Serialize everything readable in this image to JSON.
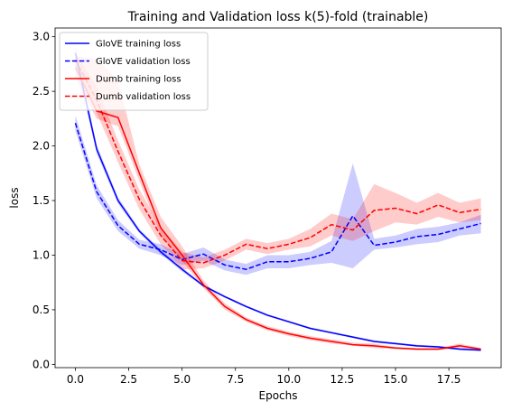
{
  "chart_data": {
    "type": "line",
    "title": "Training and Validation loss k(5)-fold (trainable)",
    "xlabel": "Epochs",
    "ylabel": "loss",
    "xlim": [
      -0.95,
      19.95
    ],
    "ylim": [
      -0.03,
      3.08
    ],
    "xticks": [
      0.0,
      2.5,
      5.0,
      7.5,
      10.0,
      12.5,
      15.0,
      17.5
    ],
    "xtick_labels": [
      "0.0",
      "2.5",
      "5.0",
      "7.5",
      "10.0",
      "12.5",
      "15.0",
      "17.5"
    ],
    "yticks": [
      0.0,
      0.5,
      1.0,
      1.5,
      2.0,
      2.5,
      3.0
    ],
    "ytick_labels": [
      "0.0",
      "0.5",
      "1.0",
      "1.5",
      "2.0",
      "2.5",
      "3.0"
    ],
    "grid": false,
    "legend_position": "top-left",
    "x": [
      0,
      1,
      2,
      3,
      4,
      5,
      6,
      7,
      8,
      9,
      10,
      11,
      12,
      13,
      14,
      15,
      16,
      17,
      18,
      19
    ],
    "series": [
      {
        "name": "GloVE training loss",
        "color": "#0000ff",
        "style": "solid",
        "values": [
          2.85,
          1.97,
          1.5,
          1.22,
          1.03,
          0.87,
          0.72,
          0.62,
          0.53,
          0.45,
          0.39,
          0.33,
          0.29,
          0.25,
          0.21,
          0.19,
          0.17,
          0.16,
          0.14,
          0.13
        ],
        "lower": [
          2.78,
          1.93,
          1.47,
          1.2,
          1.01,
          0.85,
          0.71,
          0.61,
          0.52,
          0.44,
          0.38,
          0.32,
          0.28,
          0.24,
          0.2,
          0.18,
          0.16,
          0.15,
          0.13,
          0.12
        ],
        "upper": [
          2.92,
          2.01,
          1.53,
          1.24,
          1.05,
          0.89,
          0.73,
          0.63,
          0.54,
          0.46,
          0.4,
          0.34,
          0.3,
          0.26,
          0.22,
          0.2,
          0.18,
          0.17,
          0.15,
          0.14
        ]
      },
      {
        "name": "GloVE validation loss",
        "color": "#0000ff",
        "style": "dashed",
        "values": [
          2.21,
          1.58,
          1.27,
          1.1,
          1.05,
          0.96,
          1.01,
          0.91,
          0.87,
          0.94,
          0.94,
          0.97,
          1.03,
          1.36,
          1.09,
          1.12,
          1.17,
          1.19,
          1.24,
          1.29
        ],
        "lower": [
          2.14,
          1.52,
          1.22,
          1.06,
          1.0,
          0.91,
          0.95,
          0.86,
          0.82,
          0.88,
          0.88,
          0.91,
          0.93,
          0.88,
          1.05,
          1.07,
          1.1,
          1.12,
          1.18,
          1.2
        ],
        "upper": [
          2.28,
          1.64,
          1.32,
          1.14,
          1.1,
          1.01,
          1.07,
          0.96,
          0.92,
          1.0,
          1.0,
          1.03,
          1.13,
          1.84,
          1.15,
          1.18,
          1.24,
          1.26,
          1.3,
          1.37
        ]
      },
      {
        "name": "Dumb training loss",
        "color": "#ff0000",
        "style": "solid",
        "values": [
          2.72,
          2.32,
          2.26,
          1.75,
          1.25,
          1.0,
          0.73,
          0.53,
          0.41,
          0.33,
          0.28,
          0.24,
          0.21,
          0.18,
          0.17,
          0.15,
          0.14,
          0.14,
          0.17,
          0.14
        ],
        "lower": [
          2.62,
          2.25,
          2.18,
          1.68,
          1.18,
          0.95,
          0.7,
          0.5,
          0.39,
          0.31,
          0.26,
          0.22,
          0.19,
          0.17,
          0.15,
          0.14,
          0.13,
          0.13,
          0.15,
          0.13
        ],
        "upper": [
          2.82,
          2.8,
          2.6,
          1.83,
          1.35,
          1.08,
          0.77,
          0.56,
          0.43,
          0.35,
          0.3,
          0.26,
          0.23,
          0.2,
          0.19,
          0.16,
          0.15,
          0.15,
          0.19,
          0.15
        ]
      },
      {
        "name": "Dumb validation loss",
        "color": "#ff0000",
        "style": "dashed",
        "values": [
          2.79,
          2.42,
          1.95,
          1.51,
          1.18,
          0.95,
          0.93,
          1.0,
          1.1,
          1.06,
          1.1,
          1.16,
          1.28,
          1.23,
          1.41,
          1.43,
          1.38,
          1.46,
          1.39,
          1.42
        ],
        "lower": [
          2.72,
          2.3,
          1.85,
          1.42,
          1.1,
          0.87,
          0.88,
          0.95,
          1.05,
          1.01,
          1.05,
          1.08,
          1.18,
          1.13,
          1.22,
          1.3,
          1.28,
          1.35,
          1.3,
          1.32
        ],
        "upper": [
          2.86,
          2.54,
          2.05,
          1.6,
          1.26,
          1.03,
          0.98,
          1.05,
          1.15,
          1.11,
          1.15,
          1.24,
          1.38,
          1.33,
          1.65,
          1.57,
          1.48,
          1.57,
          1.48,
          1.52
        ]
      }
    ]
  }
}
